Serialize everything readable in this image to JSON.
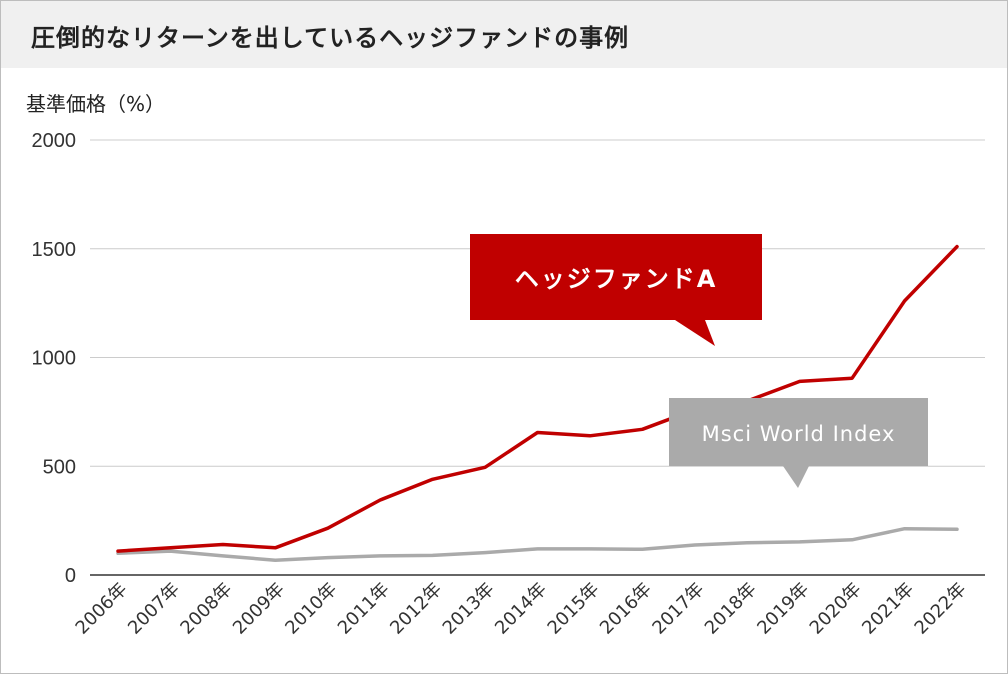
{
  "header": {
    "title": "圧倒的なリターンを出しているヘッジファンドの事例"
  },
  "chart_data": {
    "type": "line",
    "ylabel": "基準価格（%）",
    "xlabel": "",
    "ylim": [
      0,
      2000
    ],
    "yticks": [
      0,
      500,
      1000,
      1500,
      2000
    ],
    "categories": [
      "2006年",
      "2007年",
      "2008年",
      "2009年",
      "2010年",
      "2011年",
      "2012年",
      "2013年",
      "2014年",
      "2015年",
      "2016年",
      "2017年",
      "2018年",
      "2019年",
      "2020年",
      "2021年",
      "2022年"
    ],
    "grid": true,
    "series": [
      {
        "name": "ヘッジファンドA",
        "color": "#c00000",
        "values": [
          110,
          125,
          140,
          125,
          215,
          345,
          440,
          495,
          655,
          640,
          670,
          760,
          800,
          890,
          905,
          1260,
          1510
        ]
      },
      {
        "name": "Msci World Index",
        "color": "#aaaaaa",
        "values": [
          100,
          110,
          88,
          68,
          80,
          88,
          90,
          103,
          120,
          120,
          118,
          138,
          148,
          152,
          162,
          213,
          210
        ]
      }
    ],
    "annotations": [
      {
        "series": "ヘッジファンドA",
        "text": "ヘッジファンドA",
        "style": "red-callout"
      },
      {
        "series": "Msci World Index",
        "text": "Msci World Index",
        "style": "gray-callout"
      }
    ]
  }
}
